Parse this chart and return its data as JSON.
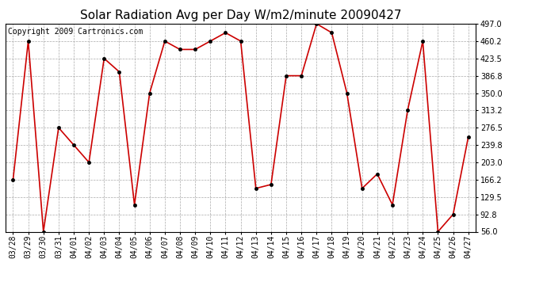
{
  "title": "Solar Radiation Avg per Day W/m2/minute 20090427",
  "copyright": "Copyright 2009 Cartronics.com",
  "x_labels": [
    "03/28",
    "03/29",
    "03/30",
    "03/31",
    "04/01",
    "04/02",
    "04/03",
    "04/04",
    "04/05",
    "04/06",
    "04/07",
    "04/08",
    "04/09",
    "04/10",
    "04/11",
    "04/12",
    "04/13",
    "04/14",
    "04/15",
    "04/16",
    "04/17",
    "04/18",
    "04/19",
    "04/20",
    "04/21",
    "04/22",
    "04/23",
    "04/24",
    "04/25",
    "04/26",
    "04/27"
  ],
  "y_values": [
    166.2,
    460.2,
    56.0,
    276.5,
    239.8,
    203.0,
    423.5,
    395.0,
    113.0,
    350.0,
    460.2,
    442.5,
    442.5,
    460.2,
    478.0,
    460.2,
    147.8,
    156.0,
    386.8,
    386.8,
    497.0,
    478.0,
    350.0,
    147.8,
    178.5,
    113.0,
    313.2,
    460.2,
    56.0,
    92.8,
    257.0
  ],
  "line_color": "#cc0000",
  "marker": "o",
  "marker_size": 3,
  "ylim": [
    56.0,
    497.0
  ],
  "yticks": [
    56.0,
    92.8,
    129.5,
    166.2,
    203.0,
    239.8,
    276.5,
    313.2,
    350.0,
    386.8,
    423.5,
    460.2,
    497.0
  ],
  "background_color": "#ffffff",
  "grid_color": "#aaaaaa",
  "title_fontsize": 11,
  "copyright_fontsize": 7,
  "tick_fontsize": 7
}
